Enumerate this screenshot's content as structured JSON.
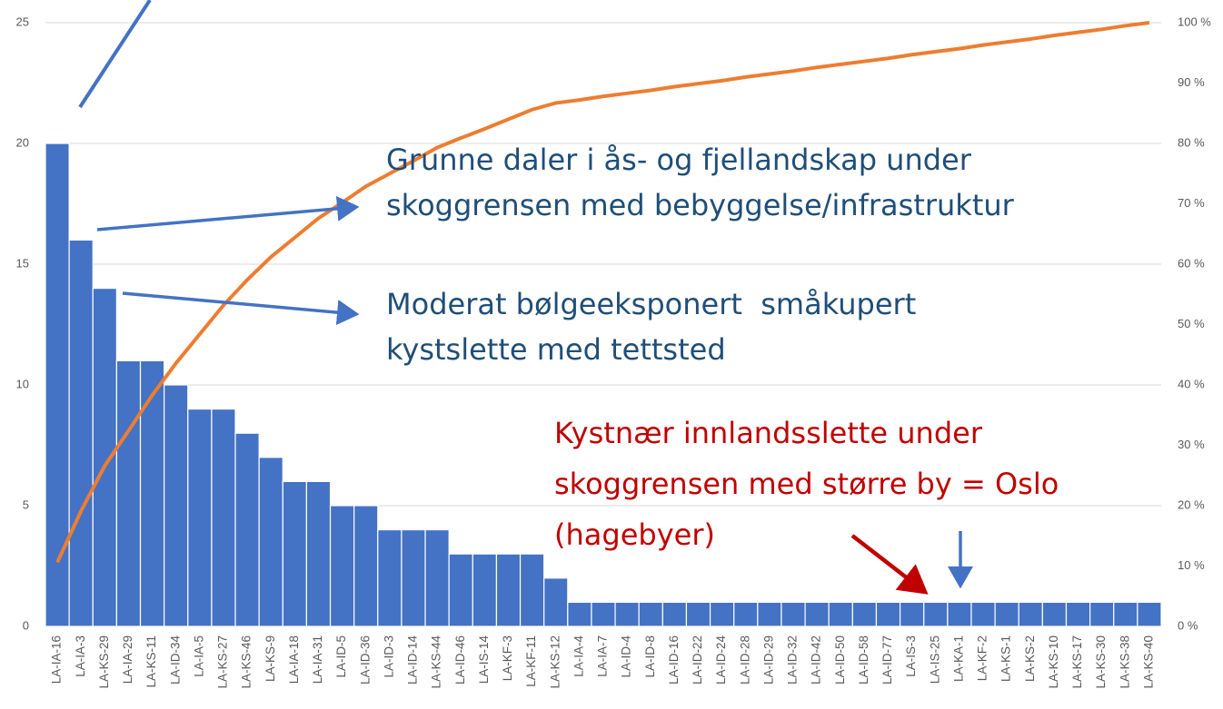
{
  "chart_data": {
    "type": "pareto",
    "categories": [
      "LA-IA-16",
      "LA-IA-3",
      "LA-KS-29",
      "LA-IA-29",
      "LA-KS-11",
      "LA-ID-34",
      "LA-IA-5",
      "LA-KS-27",
      "LA-KS-46",
      "LA-KS-9",
      "LA-IA-18",
      "LA-IA-31",
      "LA-ID-5",
      "LA-ID-36",
      "LA-ID-3",
      "LA-ID-14",
      "LA-KS-44",
      "LA-ID-46",
      "LA-IS-14",
      "LA-KF-3",
      "LA-KF-11",
      "LA-KS-12",
      "LA-IA-4",
      "LA-IA-7",
      "LA-ID-4",
      "LA-ID-8",
      "LA-ID-16",
      "LA-ID-22",
      "LA-ID-24",
      "LA-ID-28",
      "LA-ID-29",
      "LA-ID-32",
      "LA-ID-42",
      "LA-ID-50",
      "LA-ID-58",
      "LA-ID-77",
      "LA-IS-3",
      "LA-IS-25",
      "LA-KA-1",
      "LA-KF-2",
      "LA-KS-1",
      "LA-KS-2",
      "LA-KS-10",
      "LA-KS-17",
      "LA-KS-30",
      "LA-KS-38",
      "LA-KS-40"
    ],
    "series": [
      {
        "color": "#4472c4",
        "values": [
          20,
          16,
          14,
          11,
          11,
          10,
          9,
          9,
          8,
          7,
          6,
          6,
          5,
          5,
          4,
          4,
          4,
          3,
          3,
          3,
          3,
          2,
          1,
          1,
          1,
          1,
          1,
          1,
          1,
          1,
          1,
          1,
          1,
          1,
          1,
          1,
          1,
          1,
          1,
          1,
          1,
          1,
          1,
          1,
          1,
          1,
          1
        ]
      },
      {
        "color": "#ed7d31",
        "axis": "y2",
        "values": [
          10.6,
          19.1,
          26.6,
          32.4,
          38.3,
          43.6,
          48.4,
          53.2,
          57.4,
          61.2,
          64.4,
          67.6,
          70.2,
          72.9,
          75.0,
          77.1,
          79.3,
          80.9,
          82.4,
          84.0,
          85.6,
          86.7,
          87.2,
          87.8,
          88.3,
          88.8,
          89.4,
          89.9,
          90.4,
          91.0,
          91.5,
          92.0,
          92.6,
          93.1,
          93.6,
          94.1,
          94.7,
          95.2,
          95.7,
          96.3,
          96.8,
          97.3,
          97.9,
          98.4,
          98.9,
          99.5,
          100
        ]
      }
    ],
    "ylim": [
      0,
      25
    ],
    "yticks": [
      0,
      5,
      10,
      15,
      20,
      25
    ],
    "y2lim": [
      0,
      100
    ],
    "y2ticks": [
      {
        "value": 0,
        "label": "0 %"
      },
      {
        "value": 10,
        "label": "10 %"
      },
      {
        "value": 20,
        "label": "20 %"
      },
      {
        "value": 30,
        "label": "30 %"
      },
      {
        "value": 40,
        "label": "40 %"
      },
      {
        "value": 50,
        "label": "50 %"
      },
      {
        "value": 60,
        "label": "60 %"
      },
      {
        "value": 70,
        "label": "70 %"
      },
      {
        "value": 80,
        "label": "80 %"
      },
      {
        "value": 90,
        "label": "90 %"
      },
      {
        "value": 100,
        "label": "100 %"
      }
    ],
    "grid": true,
    "annotations": [
      {
        "color": "#1f4e79",
        "lines": [
          "Grunne daler i ås- og fjellandskap under",
          "skoggrensen med bebyggelse/infrastruktur"
        ]
      },
      {
        "color": "#1f4e79",
        "lines": [
          "Moderat bølgeeksponert  småkupert",
          "kystslette med tettsted"
        ]
      },
      {
        "color": "#c00000",
        "lines": [
          "Kystnær innlandsslette under",
          "skoggrensen med større by = Oslo",
          "(hagebyer)"
        ]
      }
    ]
  }
}
